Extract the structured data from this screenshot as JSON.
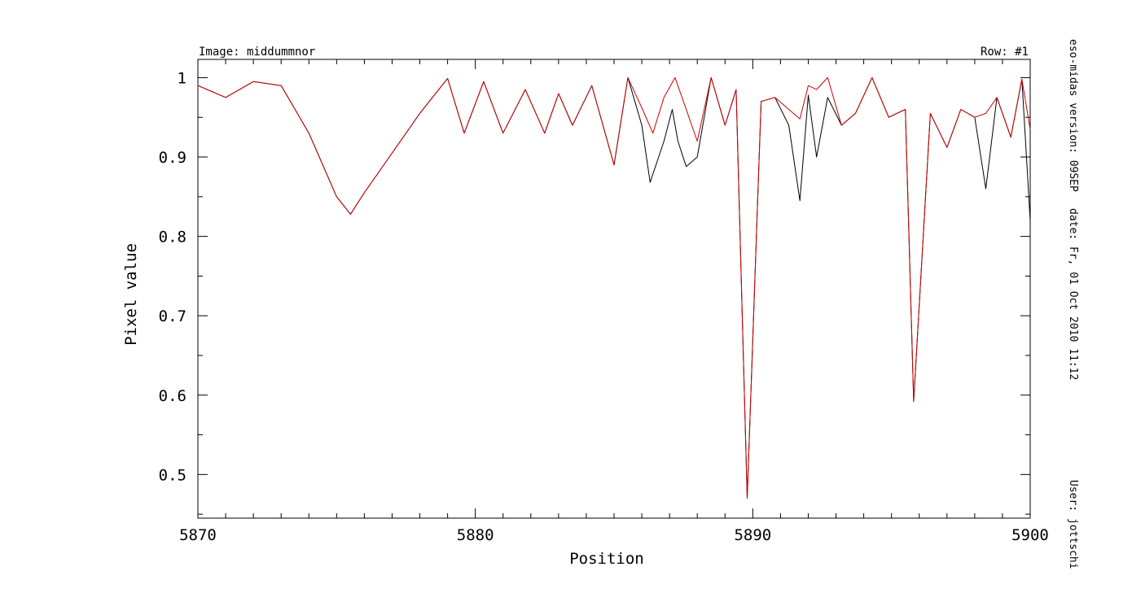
{
  "chart_data": {
    "type": "line",
    "title_left": "Image: middummnor",
    "title_right": "Row: #1",
    "xlabel": "Position",
    "ylabel": "Pixel value",
    "xlim": [
      5870,
      5900
    ],
    "ylim": [
      0.445,
      1.023
    ],
    "x_ticks": [
      5870,
      5880,
      5890,
      5900
    ],
    "x_tick_labels": [
      "5870",
      "5880",
      "5890",
      "5900"
    ],
    "y_ticks": [
      0.5,
      0.6,
      0.7,
      0.8,
      0.9,
      1.0
    ],
    "y_tick_labels": [
      "0.5",
      "0.6",
      "0.7",
      "0.8",
      "0.9",
      "1"
    ],
    "grid": false,
    "series": [
      {
        "color": "#000000",
        "x": [
          5870.0,
          5871.0,
          5872.0,
          5873.0,
          5874.0,
          5875.0,
          5875.5,
          5876.0,
          5877.0,
          5878.0,
          5879.0,
          5879.6,
          5880.3,
          5881.0,
          5881.8,
          5882.5,
          5883.0,
          5883.5,
          5884.2,
          5885.0,
          5885.5,
          5886.0,
          5886.3,
          5886.8,
          5887.1,
          5887.3,
          5887.6,
          5888.0,
          5888.5,
          5889.0,
          5889.4,
          5889.8,
          5890.3,
          5890.8,
          5891.3,
          5891.7,
          5892.0,
          5892.3,
          5892.7,
          5893.2,
          5893.7,
          5894.3,
          5894.9,
          5895.5,
          5895.8,
          5896.4,
          5897.0,
          5897.5,
          5898.0,
          5898.4,
          5898.8,
          5899.3,
          5899.7,
          5900.0
        ],
        "y": [
          0.99,
          0.975,
          0.995,
          0.99,
          0.93,
          0.85,
          0.828,
          0.855,
          0.905,
          0.955,
          0.999,
          0.93,
          0.995,
          0.93,
          0.985,
          0.93,
          0.98,
          0.94,
          0.99,
          0.89,
          1.0,
          0.94,
          0.868,
          0.92,
          0.96,
          0.92,
          0.888,
          0.9,
          1.0,
          0.94,
          0.985,
          0.47,
          0.97,
          0.975,
          0.94,
          0.845,
          0.978,
          0.9,
          0.975,
          0.94,
          0.955,
          1.0,
          0.95,
          0.96,
          0.592,
          0.955,
          0.912,
          0.96,
          0.95,
          0.86,
          0.975,
          0.925,
          0.998,
          0.82
        ]
      },
      {
        "color": "#cc0000",
        "x": [
          5870.0,
          5871.0,
          5872.0,
          5873.0,
          5874.0,
          5875.0,
          5875.5,
          5876.0,
          5877.0,
          5878.0,
          5879.0,
          5879.6,
          5880.3,
          5881.0,
          5881.8,
          5882.5,
          5883.0,
          5883.5,
          5884.2,
          5885.0,
          5885.5,
          5886.0,
          5886.4,
          5886.8,
          5887.2,
          5887.5,
          5888.0,
          5888.5,
          5889.0,
          5889.4,
          5889.8,
          5890.3,
          5890.8,
          5891.3,
          5891.7,
          5892.0,
          5892.3,
          5892.7,
          5893.2,
          5893.7,
          5894.3,
          5894.9,
          5895.5,
          5895.8,
          5896.4,
          5897.0,
          5897.5,
          5898.0,
          5898.4,
          5898.8,
          5899.3,
          5899.7,
          5900.0
        ],
        "y": [
          0.99,
          0.975,
          0.995,
          0.99,
          0.93,
          0.85,
          0.828,
          0.855,
          0.905,
          0.955,
          0.999,
          0.93,
          0.995,
          0.93,
          0.985,
          0.93,
          0.98,
          0.94,
          0.99,
          0.89,
          1.0,
          0.962,
          0.93,
          0.975,
          1.0,
          0.97,
          0.92,
          1.0,
          0.94,
          0.985,
          0.47,
          0.97,
          0.975,
          0.96,
          0.948,
          0.99,
          0.985,
          1.0,
          0.94,
          0.955,
          1.0,
          0.95,
          0.96,
          0.592,
          0.955,
          0.912,
          0.96,
          0.95,
          0.955,
          0.975,
          0.925,
          0.998,
          0.935
        ]
      }
    ]
  },
  "side_labels": {
    "version": "eso-midas version: 09SEP",
    "date": "date: Fr, 01 Oct 2010 11:12",
    "user": "User: jottschi"
  }
}
